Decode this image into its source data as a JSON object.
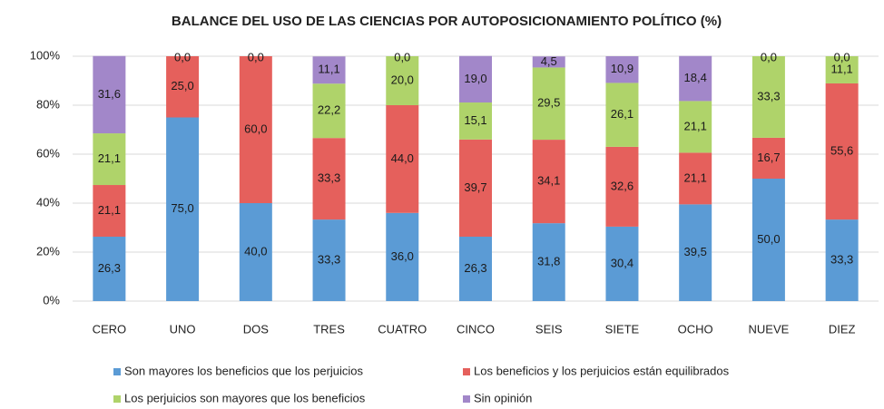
{
  "chart_data": {
    "type": "stacked_bar",
    "title": "BALANCE DEL USO DE LAS CIENCIAS POR AUTOPOSICIONAMIENTO POLÍTICO (%)",
    "categories": [
      "CERO",
      "UNO",
      "DOS",
      "TRES",
      "CUATRO",
      "CINCO",
      "SEIS",
      "SIETE",
      "OCHO",
      "NUEVE",
      "DIEZ"
    ],
    "series": [
      {
        "name": "Son mayores  los beneficios que los perjuicios",
        "color": "#5b9bd5",
        "values": [
          26.3,
          75.0,
          40.0,
          33.3,
          36.0,
          26.3,
          31.8,
          30.4,
          39.5,
          50.0,
          33.3
        ],
        "value_labels": [
          "26,3",
          "75,0",
          "40,0",
          "33,3",
          "36,0",
          "26,3",
          "31,8",
          "30,4",
          "39,5",
          "50,0",
          "33,3"
        ]
      },
      {
        "name": "Los beneficios y los perjuicios están equilibrados",
        "color": "#e5605c",
        "values": [
          21.1,
          25.0,
          60.0,
          33.3,
          44.0,
          39.7,
          34.1,
          32.6,
          21.1,
          16.7,
          55.6
        ],
        "value_labels": [
          "21,1",
          "25,0",
          "60,0",
          "33,3",
          "44,0",
          "39,7",
          "34,1",
          "32,6",
          "21,1",
          "16,7",
          "55,6"
        ]
      },
      {
        "name": "Los perjuicios son mayores que los beneficios",
        "color": "#afd36a",
        "values": [
          21.1,
          0.0,
          0.0,
          22.2,
          20.0,
          15.1,
          29.5,
          26.1,
          21.1,
          33.3,
          11.1
        ],
        "value_labels": [
          "21,1",
          null,
          null,
          "22,2",
          "20,0",
          "15,1",
          "29,5",
          "26,1",
          "21,1",
          "33,3",
          "11,1"
        ]
      },
      {
        "name": "Sin opinión",
        "color": "#a287c9",
        "values": [
          31.6,
          0.0,
          0.0,
          11.1,
          0.0,
          19.0,
          4.5,
          10.9,
          18.4,
          0.0,
          0.0
        ],
        "value_labels": [
          "31,6",
          "0,0",
          "0,0",
          "11,1",
          "0,0",
          "19,0",
          "4,5",
          "10,9",
          "18,4",
          "0,0",
          "0,0"
        ]
      }
    ],
    "ylim": [
      0,
      100
    ],
    "yticks": [
      {
        "value": 0,
        "label": "0%"
      },
      {
        "value": 20,
        "label": "20%"
      },
      {
        "value": 40,
        "label": "40%"
      },
      {
        "value": 60,
        "label": "60%"
      },
      {
        "value": 80,
        "label": "80%"
      },
      {
        "value": 100,
        "label": "100%"
      }
    ],
    "grid": true
  }
}
